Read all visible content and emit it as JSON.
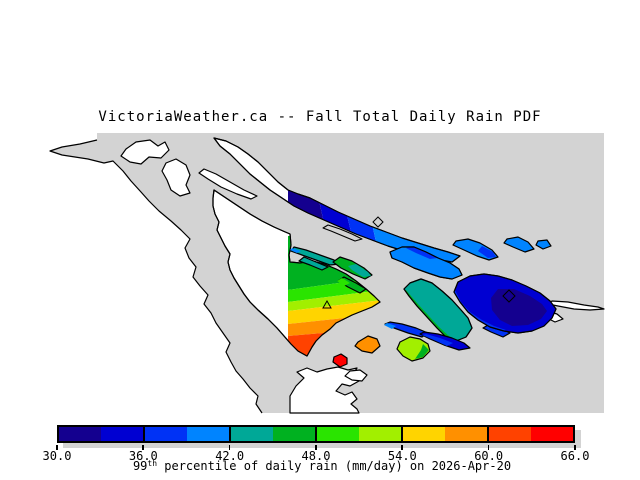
{
  "title": "VictoriaWeather.ca -- Fall Total Daily Rain PDF",
  "map": {
    "sea_color": "#d3d3d3",
    "land_color": "#ffffff",
    "outline_color": "#000000"
  },
  "colorbar": {
    "min": 30.0,
    "max": 66.0,
    "band_step": 3.0,
    "tick_labels": [
      "30.0",
      "36.0",
      "42.0",
      "48.0",
      "54.0",
      "60.0",
      "66.0"
    ],
    "colors": [
      "#14008f",
      "#0000d2",
      "#0032f5",
      "#0084ff",
      "#00a897",
      "#00b120",
      "#2ae400",
      "#a2ef00",
      "#ffd400",
      "#ff9000",
      "#ff4200",
      "#ff0000"
    ],
    "shadow_color": "#d3d3d3",
    "caption": {
      "prefix": "99",
      "superscript": "th",
      "rest": " percentile of daily rain (mm/day) on 2026-Apr-20"
    }
  }
}
